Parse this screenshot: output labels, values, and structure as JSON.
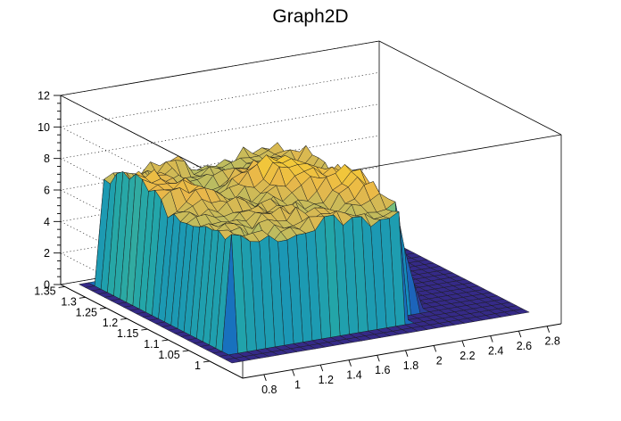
{
  "chart_data": {
    "type": "surface",
    "title": "Graph2D",
    "xlim": [
      0.65,
      2.9
    ],
    "ylim": [
      0.92,
      1.36
    ],
    "zlim": [
      0,
      12
    ],
    "x_ticks": [
      "0.8",
      "1",
      "1.2",
      "1.4",
      "1.6",
      "1.8",
      "2",
      "2.2",
      "2.4",
      "2.6",
      "2.8"
    ],
    "y_ticks": [
      "1",
      "1.05",
      "1.1",
      "1.15",
      "1.2",
      "1.25",
      "1.3",
      "1.35"
    ],
    "z_ticks": [
      "0",
      "2",
      "4",
      "6",
      "8",
      "10",
      "12"
    ],
    "grid": true,
    "palette": [
      "#352a87",
      "#1e5fb8",
      "#1185c4",
      "#23a6a8",
      "#6fbf82",
      "#b5bd63",
      "#e9b74a",
      "#f8d22f",
      "#f9fb0e"
    ],
    "surface": {
      "x_range": [
        0.75,
        2.85
      ],
      "y_range": [
        0.98,
        1.35
      ],
      "plateau_x_range": [
        0.88,
        2.12
      ],
      "plateau_y_range": [
        1.02,
        1.34
      ],
      "plateau_level": 6.8,
      "floor_level": 0
    }
  }
}
